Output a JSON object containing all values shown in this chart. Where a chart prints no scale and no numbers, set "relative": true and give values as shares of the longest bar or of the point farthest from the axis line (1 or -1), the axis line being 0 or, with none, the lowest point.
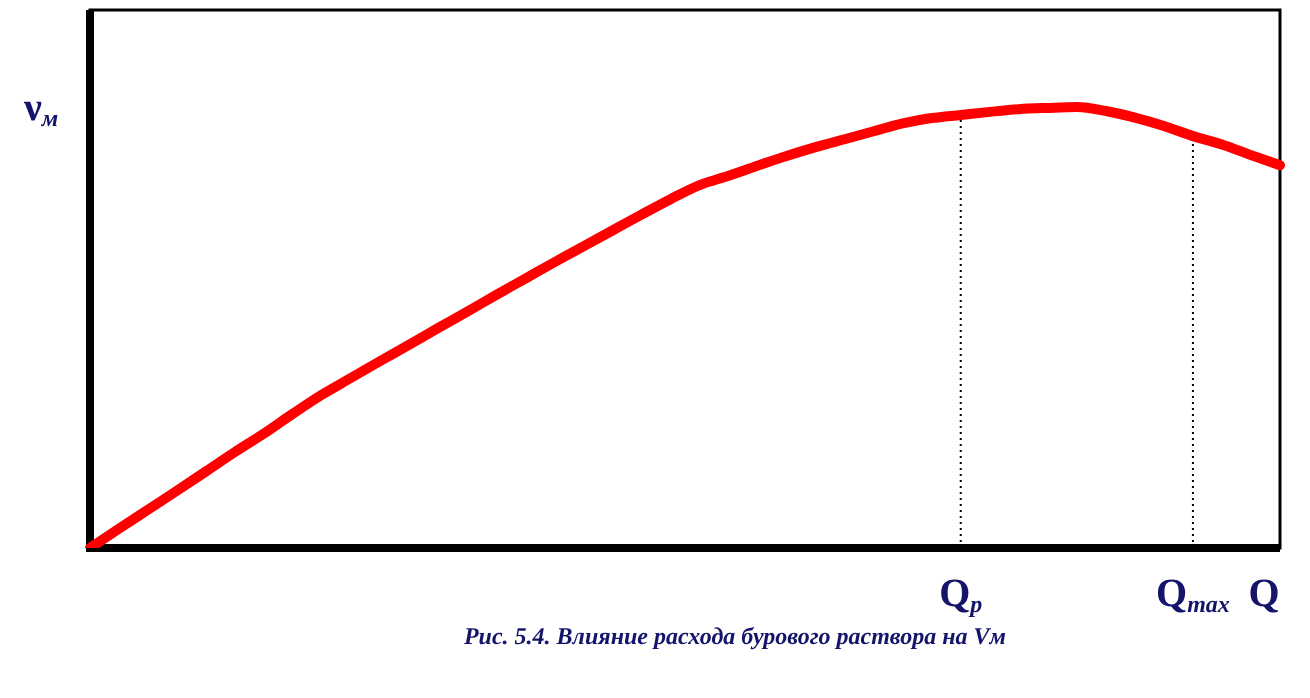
{
  "chart_data": {
    "type": "line",
    "relative": true,
    "title": "Рис. 5.4. Влияние расхода бурового раствора на Vм",
    "xlabel": "Q",
    "ylabel": "ν$_{м}$",
    "categories": [
      null,
      null,
      null,
      null,
      null,
      null,
      null,
      null,
      null,
      null,
      null,
      null,
      null,
      null,
      null,
      null,
      null,
      null,
      null,
      null,
      null,
      null,
      null,
      null,
      null,
      null,
      null,
      null,
      null,
      null,
      "Q$_{р}$",
      null,
      null,
      null,
      null,
      null,
      null,
      null,
      "Q$_{max}$",
      null,
      null,
      null
    ],
    "series": [
      {
        "color": "#ff0000",
        "values": [
          0,
          0.044,
          0.087,
          0.13,
          0.174,
          0.218,
          0.26,
          0.305,
          0.348,
          0.386,
          0.424,
          0.461,
          0.499,
          0.536,
          0.574,
          0.611,
          0.648,
          0.684,
          0.72,
          0.756,
          0.791,
          0.823,
          0.844,
          0.867,
          0.889,
          0.909,
          0.927,
          0.945,
          0.963,
          0.975,
          0.982,
          0.989,
          0.995,
          0.998,
          1,
          0.991,
          0.976,
          0.957,
          0.934,
          0.915,
          0.891,
          0.868
        ]
      }
    ],
    "ref_lines": [
      {
        "axis": "x",
        "value": "Q$_{р}$",
        "line_style": "dotted",
        "color": "#000000"
      },
      {
        "axis": "x",
        "value": "Q$_{max}$",
        "line_style": "dotted",
        "color": "#000000"
      }
    ],
    "legend": false,
    "marker": "none",
    "line_style": "solid"
  }
}
